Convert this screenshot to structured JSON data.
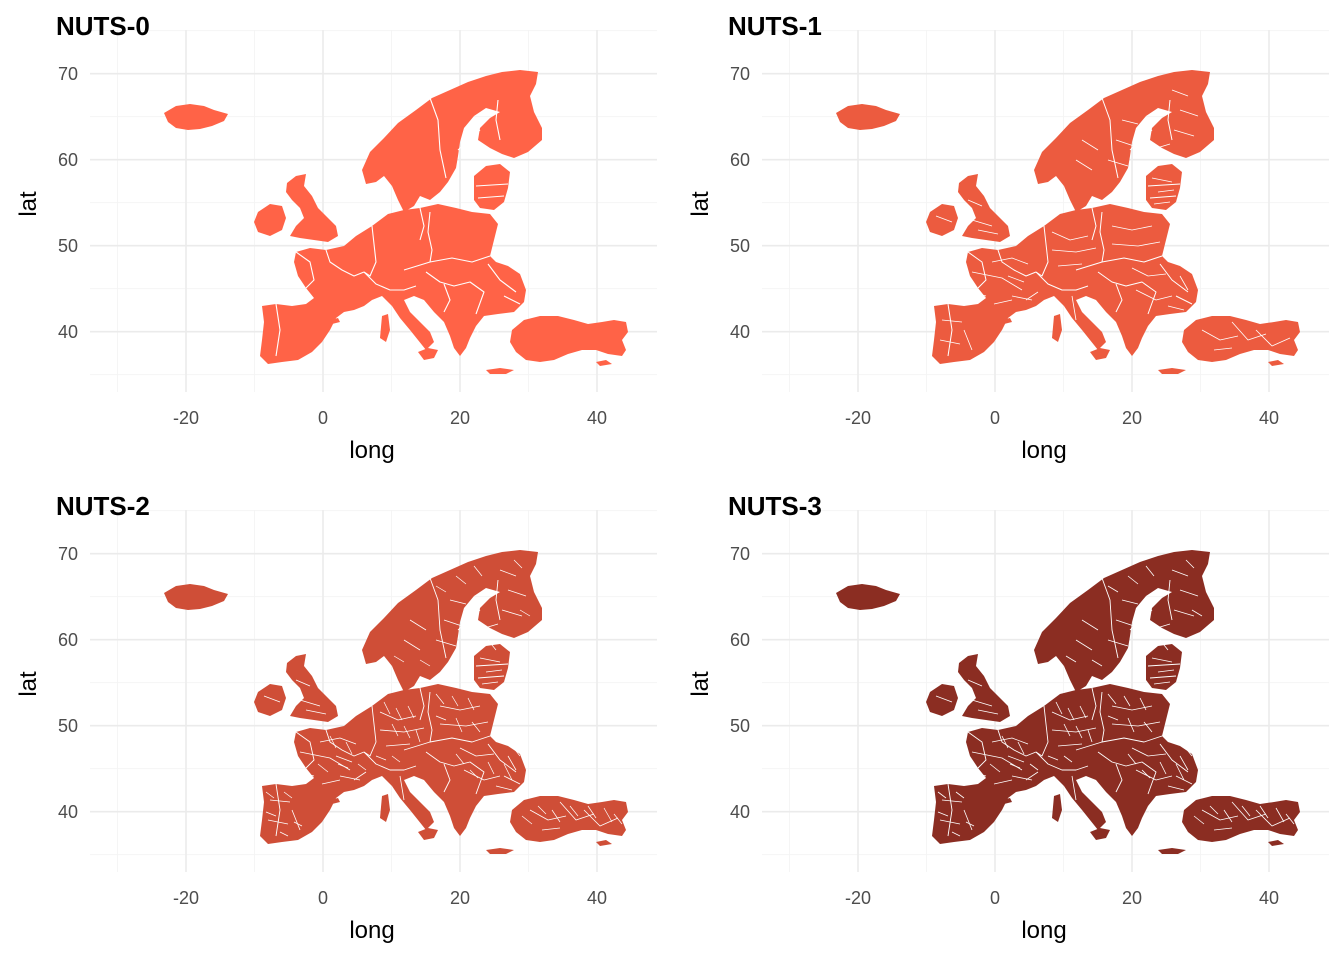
{
  "chart_data": [
    {
      "type": "map",
      "title": "NUTS-0",
      "xlabel": "long",
      "ylabel": "lat",
      "x_ticks": [
        -20,
        0,
        20,
        40
      ],
      "y_ticks": [
        40,
        50,
        60,
        70
      ],
      "xlim": [
        -35,
        48
      ],
      "ylim": [
        33,
        73
      ],
      "fill_color": "#ff6347",
      "grid": true
    },
    {
      "type": "map",
      "title": "NUTS-1",
      "xlabel": "long",
      "ylabel": "lat",
      "x_ticks": [
        -20,
        0,
        20,
        40
      ],
      "y_ticks": [
        40,
        50,
        60,
        70
      ],
      "xlim": [
        -35,
        48
      ],
      "ylim": [
        33,
        73
      ],
      "fill_color": "#ec5b3f",
      "grid": true
    },
    {
      "type": "map",
      "title": "NUTS-2",
      "xlabel": "long",
      "ylabel": "lat",
      "x_ticks": [
        -20,
        0,
        20,
        40
      ],
      "y_ticks": [
        40,
        50,
        60,
        70
      ],
      "xlim": [
        -35,
        48
      ],
      "ylim": [
        33,
        73
      ],
      "fill_color": "#cf4e37",
      "grid": true
    },
    {
      "type": "map",
      "title": "NUTS-3",
      "xlabel": "long",
      "ylabel": "lat",
      "x_ticks": [
        -20,
        0,
        20,
        40
      ],
      "y_ticks": [
        40,
        50,
        60,
        70
      ],
      "xlim": [
        -35,
        48
      ],
      "ylim": [
        33,
        73
      ],
      "fill_color": "#8b2d22",
      "grid": true
    }
  ]
}
